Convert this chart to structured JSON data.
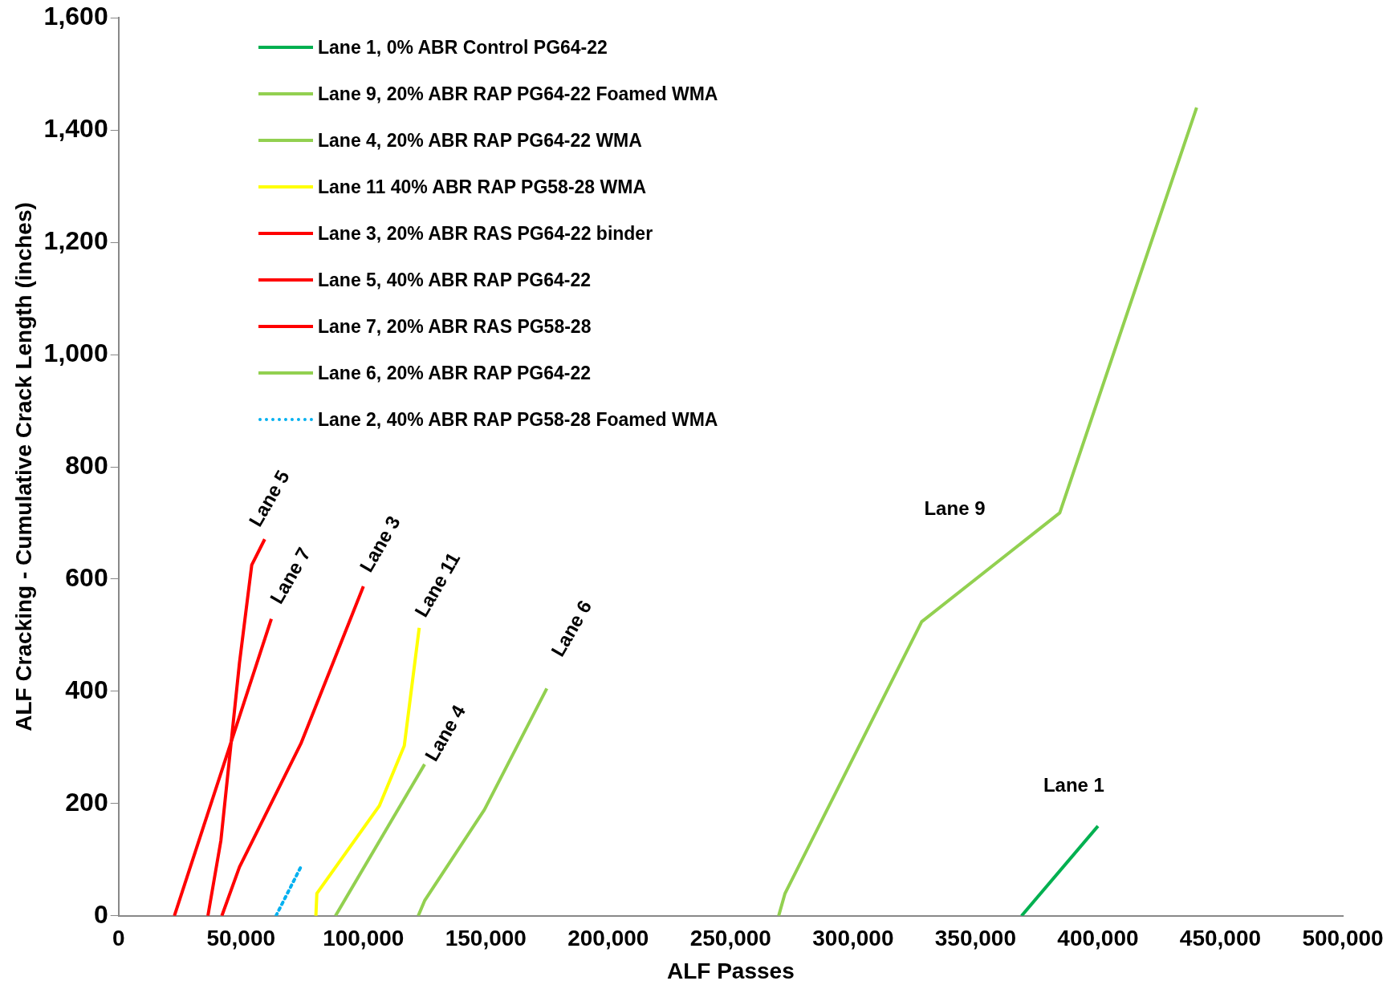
{
  "chart_data": {
    "type": "line",
    "xlabel": "ALF Passes",
    "ylabel": "ALF Cracking - Cumulative Crack Length (inches)",
    "xlim": [
      0,
      500000
    ],
    "xticks": [
      0,
      {
        "value": 50000,
        "label": "50,000"
      },
      {
        "value": 100000,
        "label": "100,000"
      },
      {
        "value": 150000,
        "label": "150,000"
      },
      {
        "value": 200000,
        "label": "200,000"
      },
      {
        "value": 250000,
        "label": "250,000"
      },
      {
        "value": 300000,
        "label": "300,000"
      },
      {
        "value": 350000,
        "label": "350,000"
      },
      {
        "value": 400000,
        "label": "400,000"
      },
      {
        "value": 450000,
        "label": "450,000"
      },
      {
        "value": 500000,
        "label": "500,000"
      }
    ],
    "ylim": [
      0,
      1600
    ],
    "yticks": [
      0,
      200,
      400,
      600,
      800,
      {
        "value": 1000,
        "label": "1,000"
      },
      {
        "value": 1200,
        "label": "1,200"
      },
      {
        "value": 1400,
        "label": "1,400"
      },
      {
        "value": 1600,
        "label": "1,600"
      }
    ],
    "grid": false,
    "legend": "top left",
    "marker": "none",
    "line_style": "solid",
    "series": [
      {
        "name": "Lane 1,  0% ABR Control PG64-22",
        "color": "#00b050",
        "x": [
          368800,
          400000
        ],
        "values": [
          0,
          160
        ]
      },
      {
        "name": "Lane 9,  20% ABR RAP PG64-22 Foamed WMA",
        "color": "#92d050",
        "x": [
          269600,
          272200,
          328000,
          384400,
          440300
        ],
        "values": [
          0,
          40,
          524,
          718,
          1440
        ]
      },
      {
        "name": "Lane 4,  20% ABR RAP PG64-22 WMA",
        "color": "#92d050",
        "x": [
          88600,
          125000
        ],
        "values": [
          0,
          270
        ]
      },
      {
        "name": "Lane 11 40% ABR RAP PG58-28 WMA",
        "color": "#ffff00",
        "x": [
          80600,
          81000,
          106500,
          116700,
          122800
        ],
        "values": [
          0,
          40,
          196,
          303,
          513
        ]
      },
      {
        "name": "Lane 3,  20% ABR RAS PG64-22 binder",
        "color": "#ff0000",
        "x": [
          42200,
          49400,
          74500,
          100000
        ],
        "values": [
          0,
          87,
          307,
          587
        ]
      },
      {
        "name": "Lane 5,  40% ABR RAP PG64-22",
        "color": "#ff0000",
        "x": [
          36500,
          41800,
          49400,
          54400,
          59700
        ],
        "values": [
          0,
          134,
          451,
          625,
          671
        ]
      },
      {
        "name": "Lane 7, 20% ABR RAS PG58-28",
        "color": "#ff0000",
        "x": [
          22800,
          62400
        ],
        "values": [
          0,
          529
        ]
      },
      {
        "name": "Lane 6, 20% ABR RAP PG64-22",
        "color": "#92d050",
        "x": [
          122400,
          125000,
          149400,
          174900
        ],
        "values": [
          0,
          27,
          189,
          405
        ]
      },
      {
        "name": "Lane 2, 40% ABR RAP PG58-28 Foamed WMA",
        "color": "#00b0f0",
        "line_style": "dotted",
        "x": [
          64300,
          74900
        ],
        "values": [
          0,
          91
        ]
      }
    ],
    "annotations": [
      {
        "text": "Lane 5",
        "x": 59700,
        "y": 671
      },
      {
        "text": "Lane 7",
        "x": 62400,
        "y": 529
      },
      {
        "text": "Lane 3",
        "x": 100000,
        "y": 587
      },
      {
        "text": "Lane 11",
        "x": 122800,
        "y": 513
      },
      {
        "text": "Lane 4",
        "x": 125000,
        "y": 270
      },
      {
        "text": "Lane 6",
        "x": 174900,
        "y": 405
      },
      "Lane 9",
      {
        "text": "Lane 1",
        "x": 400000,
        "y": 160
      }
    ]
  }
}
